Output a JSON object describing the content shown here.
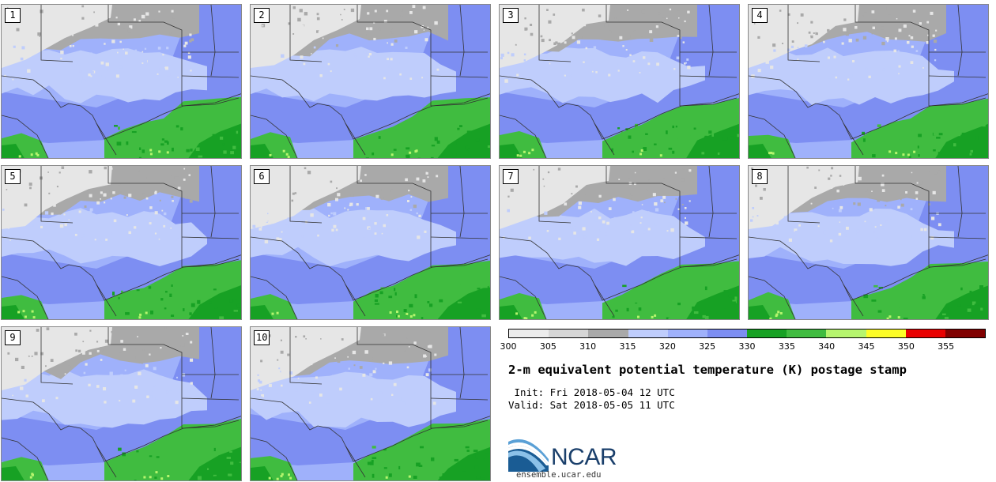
{
  "panels": [
    {
      "label": "1"
    },
    {
      "label": "2"
    },
    {
      "label": "3"
    },
    {
      "label": "4"
    },
    {
      "label": "5"
    },
    {
      "label": "6"
    },
    {
      "label": "7"
    },
    {
      "label": "8"
    },
    {
      "label": "9"
    },
    {
      "label": "10"
    }
  ],
  "colorbar": {
    "colors": [
      "#ececec",
      "#d6d6d6",
      "#a9a9a9",
      "#bfcdfc",
      "#9fb1fb",
      "#7d8ef2",
      "#17a124",
      "#40bc40",
      "#b6f56e",
      "#fdfd28",
      "#e80000",
      "#800000"
    ],
    "ticks": [
      "300",
      "305",
      "310",
      "315",
      "320",
      "325",
      "330",
      "335",
      "340",
      "345",
      "350",
      "355"
    ]
  },
  "title": "2-m equivalent potential temperature (K) postage stamp",
  "init_text": " Init: Fri 2018-05-04 12 UTC",
  "valid_text": "Valid: Sat 2018-05-05 11 UTC",
  "logo": {
    "text": "NCAR",
    "url": "ensemble.ucar.edu"
  }
}
